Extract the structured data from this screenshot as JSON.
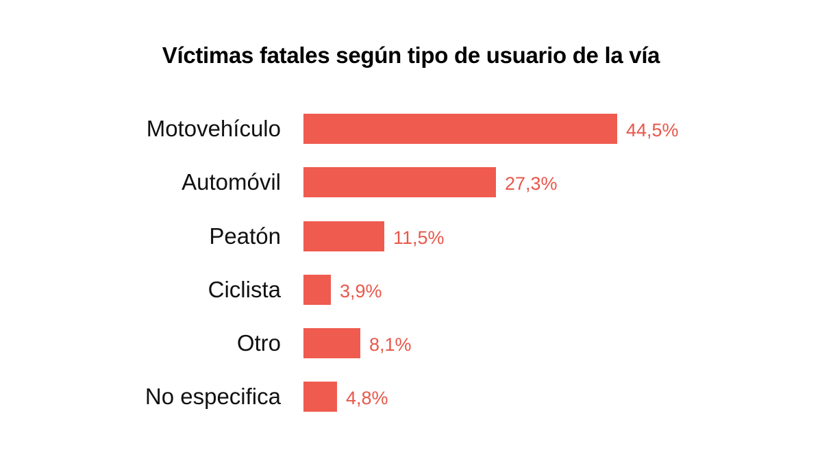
{
  "title": "Víctimas fatales según tipo de usuario de la vía",
  "bar_color": "#ef5b4f",
  "label_color": "#e8574b",
  "rows": [
    {
      "label": "Motovehículo",
      "value": 44.5,
      "display": "44,5%"
    },
    {
      "label": "Automóvil",
      "value": 27.3,
      "display": "27,3%"
    },
    {
      "label": "Peatón",
      "value": 11.5,
      "display": "11,5%"
    },
    {
      "label": "Ciclista",
      "value": 3.9,
      "display": "3,9%"
    },
    {
      "label": "Otro",
      "value": 8.1,
      "display": "8,1%"
    },
    {
      "label": "No especifica",
      "value": 4.8,
      "display": "4,8%"
    }
  ],
  "chart_data": {
    "type": "bar",
    "orientation": "horizontal",
    "title": "Víctimas fatales según tipo de usuario de la vía",
    "categories": [
      "Motovehículo",
      "Automóvil",
      "Peatón",
      "Ciclista",
      "Otro",
      "No especifica"
    ],
    "values": [
      44.5,
      27.3,
      11.5,
      3.9,
      8.1,
      4.8
    ],
    "value_labels": [
      "44,5%",
      "27,3%",
      "11,5%",
      "3,9%",
      "8,1%",
      "4,8%"
    ],
    "xlabel": "",
    "ylabel": "",
    "unit": "%",
    "grid": false,
    "legend": null
  }
}
